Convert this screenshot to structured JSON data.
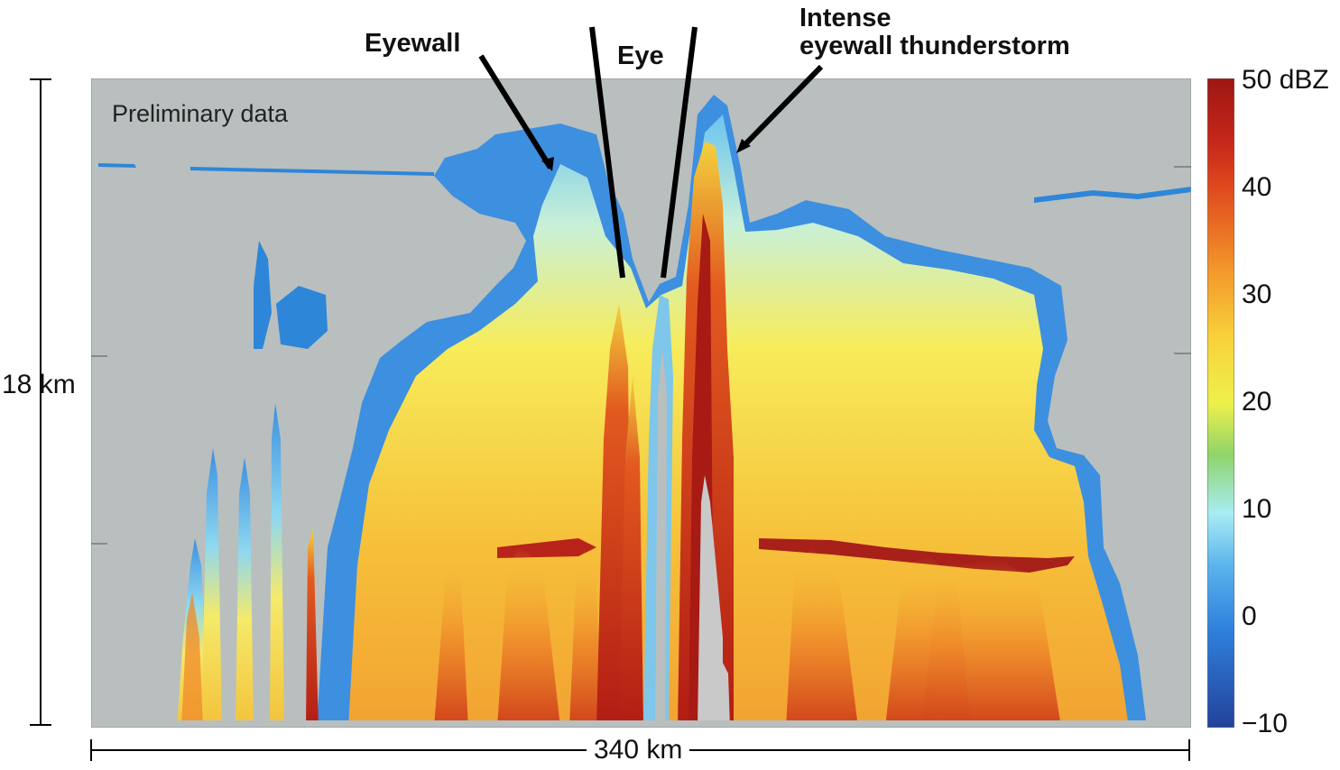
{
  "panel": {
    "note": "Preliminary data",
    "colors": {
      "background": "#b9bfbe",
      "cold": "#2e86d8",
      "mid": "#f7e040",
      "warm": "#e0461e",
      "hot": "#a01812"
    }
  },
  "annotations": {
    "eyewall": "Eyewall",
    "eye": "Eye",
    "intense_line1": "Intense",
    "intense_line2": "eyewall thunderstorm"
  },
  "dimensions": {
    "height": "18 km",
    "width": "340 km"
  },
  "colorbar": {
    "unit": "dBZ",
    "ticks": [
      "50 dBZ",
      "40",
      "30",
      "20",
      "10",
      "0",
      "−10"
    ],
    "tick_values": [
      50,
      40,
      30,
      20,
      10,
      0,
      -10
    ],
    "colors": [
      "#9e1612",
      "#d9341c",
      "#f07a22",
      "#f8c93a",
      "#f2ee4a",
      "#8fd46a",
      "#9ee8f2",
      "#4aa8ea",
      "#2a6fd8",
      "#24489a"
    ]
  }
}
